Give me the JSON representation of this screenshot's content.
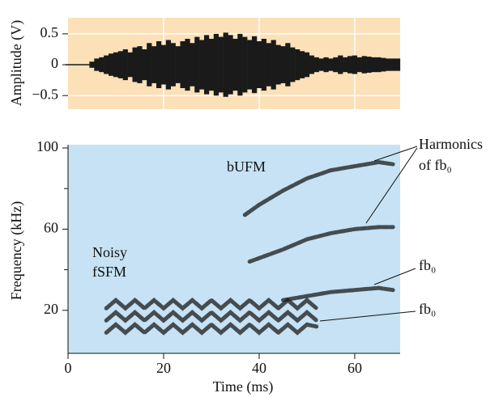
{
  "chart_data": [
    {
      "type": "waveform",
      "ylabel": "Amplitude (V)",
      "background": "#fbe0b8",
      "color": "#1a1a1a",
      "grid": true,
      "xlim": [
        0,
        69.5
      ],
      "ylim": [
        -0.72,
        0.76
      ],
      "yticks": [
        {
          "value": 0.5,
          "label": "0.5"
        },
        0,
        {
          "value": -0.5,
          "label": "−0.5"
        }
      ],
      "xgrid": [
        20,
        40,
        60
      ],
      "x": [
        0,
        1,
        2,
        3,
        4,
        5,
        6,
        7,
        8,
        9,
        10,
        11,
        12,
        13,
        14,
        15,
        16,
        17,
        18,
        19,
        20,
        21,
        22,
        23,
        24,
        25,
        26,
        27,
        28,
        29,
        30,
        31,
        32,
        33,
        34,
        35,
        36,
        37,
        38,
        39,
        40,
        41,
        42,
        43,
        44,
        45,
        46,
        47,
        48,
        49,
        50,
        51,
        52,
        53,
        54,
        55,
        56,
        57,
        58,
        59,
        60,
        61,
        62,
        63,
        64,
        65,
        66,
        67,
        68,
        69
      ],
      "values": [
        0.01,
        0.01,
        0.01,
        0.01,
        0.01,
        0.05,
        0.1,
        0.12,
        0.15,
        0.18,
        0.2,
        0.22,
        0.25,
        0.2,
        0.28,
        0.3,
        0.25,
        0.35,
        0.3,
        0.38,
        0.32,
        0.4,
        0.35,
        0.3,
        0.38,
        0.42,
        0.35,
        0.45,
        0.4,
        0.48,
        0.42,
        0.5,
        0.45,
        0.52,
        0.48,
        0.42,
        0.5,
        0.45,
        0.4,
        0.46,
        0.38,
        0.42,
        0.35,
        0.4,
        0.32,
        0.3,
        0.35,
        0.28,
        0.25,
        0.22,
        0.2,
        0.15,
        0.12,
        0.1,
        0.12,
        0.1,
        0.12,
        0.15,
        0.12,
        0.14,
        0.15,
        0.12,
        0.14,
        0.13,
        0.12,
        0.12,
        0.11,
        0.1,
        0.1,
        0.1
      ]
    },
    {
      "type": "spectrogram",
      "xlabel": "Time (ms)",
      "ylabel": "Frequency (kHz)",
      "background": "#c6e2f4",
      "color": "#1a1a1a",
      "xlim": [
        0,
        69.5
      ],
      "ylim": [
        0,
        100
      ],
      "xticks": [
        0,
        20,
        40,
        60
      ],
      "yticks": [
        20,
        60,
        100
      ],
      "yminorticks": [
        40,
        80
      ],
      "traces": [
        {
          "x": [
            37,
            40,
            45,
            50,
            55,
            60,
            65,
            68
          ],
          "values": [
            67,
            72,
            79,
            85,
            89,
            91,
            93,
            92
          ]
        },
        {
          "x": [
            38,
            45,
            50,
            55,
            60,
            65,
            68
          ],
          "values": [
            44,
            50,
            55,
            58,
            60,
            61,
            61
          ]
        },
        {
          "x": [
            45,
            50,
            55,
            60,
            65,
            68
          ],
          "values": [
            25,
            27,
            29,
            30,
            31,
            30
          ]
        },
        {
          "x": [
            8,
            10,
            12,
            14,
            16,
            18,
            20,
            22,
            24,
            26,
            28,
            30,
            32,
            34,
            36,
            38,
            40,
            42,
            44,
            46,
            48,
            50,
            52
          ],
          "values": [
            9,
            13,
            9,
            13,
            9,
            13,
            9,
            13,
            9,
            13,
            9,
            13,
            9,
            13,
            9,
            13,
            9,
            13,
            9,
            13,
            9,
            13,
            12
          ]
        },
        {
          "x": [
            8,
            10,
            12,
            14,
            16,
            18,
            20,
            22,
            24,
            26,
            28,
            30,
            32,
            34,
            36,
            38,
            40,
            42,
            44,
            46,
            48,
            50,
            52
          ],
          "values": [
            15,
            19,
            15,
            19,
            15,
            19,
            15,
            19,
            15,
            19,
            15,
            19,
            15,
            19,
            15,
            19,
            15,
            19,
            15,
            19,
            15,
            19,
            15
          ]
        },
        {
          "x": [
            8,
            10,
            12,
            14,
            16,
            18,
            20,
            22,
            24,
            26,
            28,
            30,
            32,
            34,
            36,
            38,
            40,
            42,
            44,
            46,
            48,
            50,
            52
          ],
          "values": [
            21,
            25,
            21,
            25,
            21,
            25,
            21,
            25,
            21,
            25,
            21,
            25,
            21,
            25,
            21,
            25,
            21,
            25,
            21,
            25,
            21,
            25,
            21
          ]
        }
      ],
      "annotations": [
        "bUFM",
        "Noisy",
        "fSFM",
        "Harmonics",
        "of fb₀",
        "fb₀",
        "fb₀"
      ]
    }
  ]
}
